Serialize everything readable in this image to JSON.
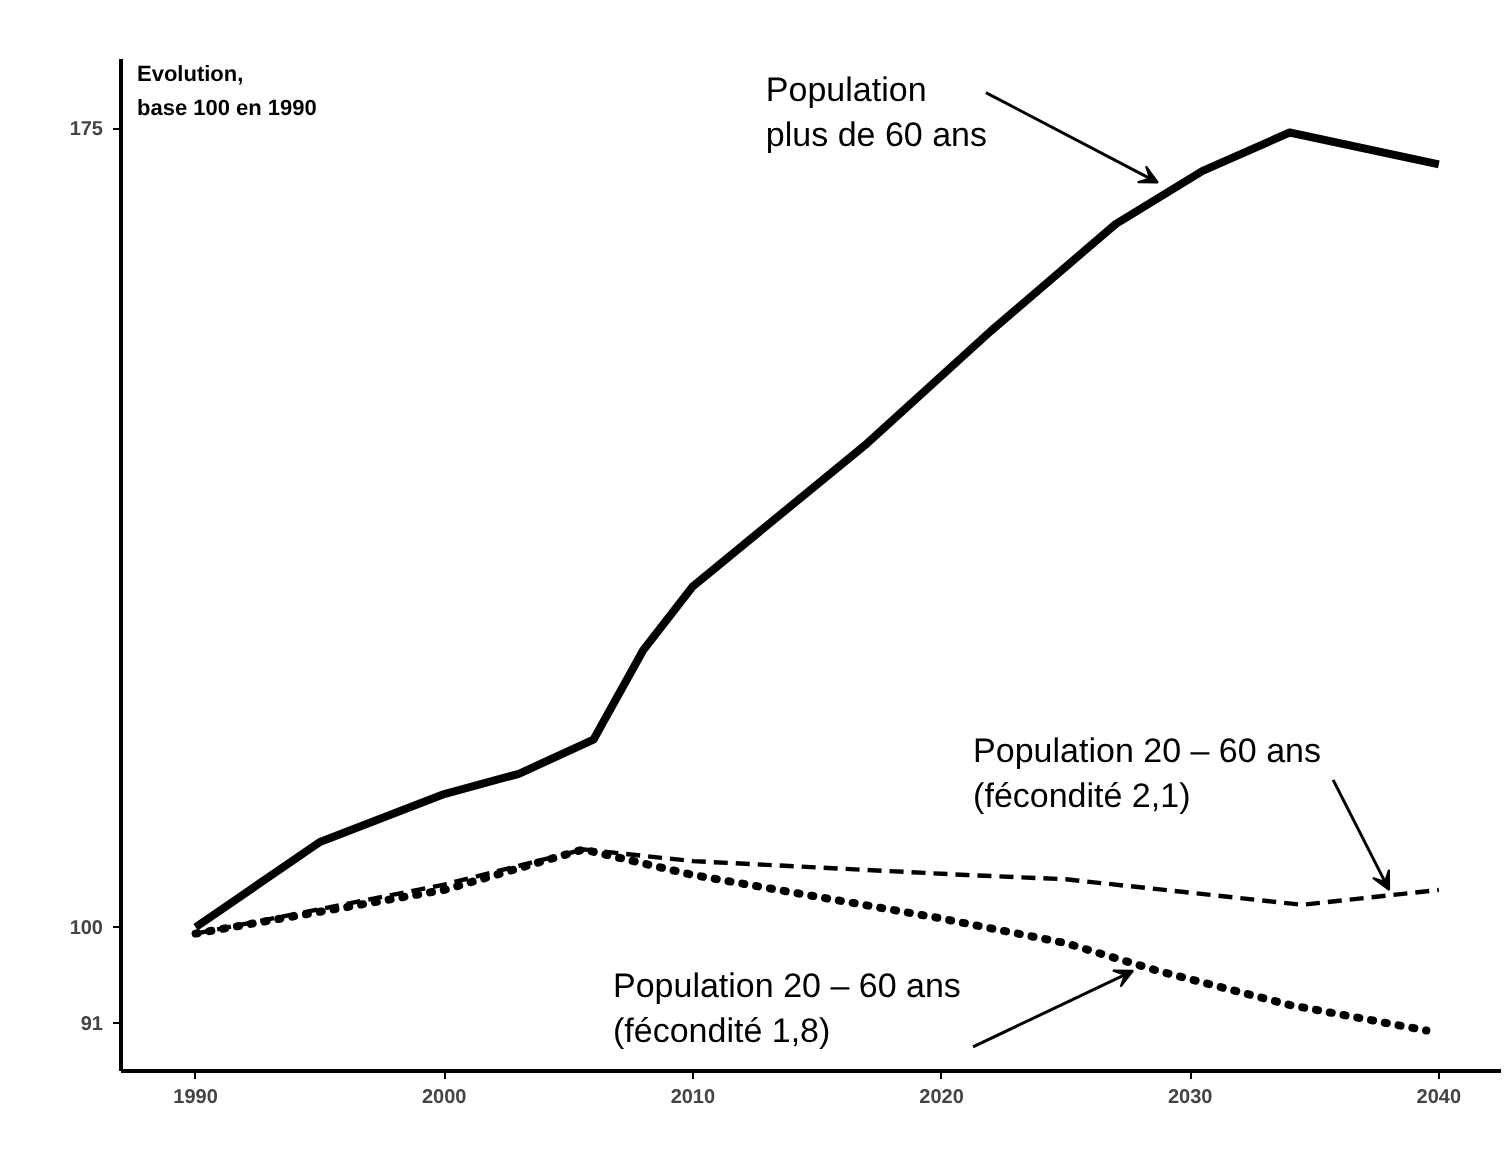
{
  "chart_data": {
    "type": "line",
    "ylabel": "Evolution,\nbase 100 en 1990",
    "xlim": [
      1987,
      2042.5
    ],
    "ylim": [
      86.5,
      181.5
    ],
    "xticks": [
      1990,
      2000,
      2010,
      2020,
      2030,
      2040
    ],
    "yticks": [
      91,
      100,
      175
    ],
    "grid": false,
    "series": [
      {
        "color": "#000000",
        "line_style": "solid",
        "x": [
          1990,
          1995,
          2000,
          2003,
          2006,
          2008,
          2010,
          2017,
          2022,
          2027,
          2030.5,
          2034,
          2040
        ],
        "values": [
          100,
          108,
          112.5,
          114.4,
          117.6,
          126,
          132,
          145.4,
          156,
          166,
          171,
          174.6,
          171.6
        ]
      },
      {
        "color": "#000000",
        "line_style": "dashed",
        "x": [
          1990,
          2000,
          2005.6,
          2010,
          2021,
          2025,
          2034.5,
          2040
        ],
        "values": [
          99.4,
          104,
          107.3,
          106.2,
          104.9,
          104.5,
          102.1,
          103.5
        ]
      },
      {
        "color": "#000000",
        "line_style": "dotted",
        "x": [
          1990,
          2000,
          2005.6,
          2010,
          2019.8,
          2025,
          2028.7,
          2034,
          2039.5
        ],
        "values": [
          99.4,
          103.5,
          107.3,
          104.9,
          100.9,
          98.5,
          95.9,
          92.7,
          90.3
        ]
      }
    ],
    "annotations": [
      {
        "text": "Population\nplus de 60 ans",
        "x": 2028.7,
        "y": 169.9
      },
      {
        "text": "Population 20 – 60 ans\n(fécondité 2,1)",
        "x": 2038,
        "y": 103.5
      },
      {
        "text": "Population 20 – 60 ans\n(fécondité 1,8)",
        "x": 2027.7,
        "y": 95.9
      }
    ]
  }
}
